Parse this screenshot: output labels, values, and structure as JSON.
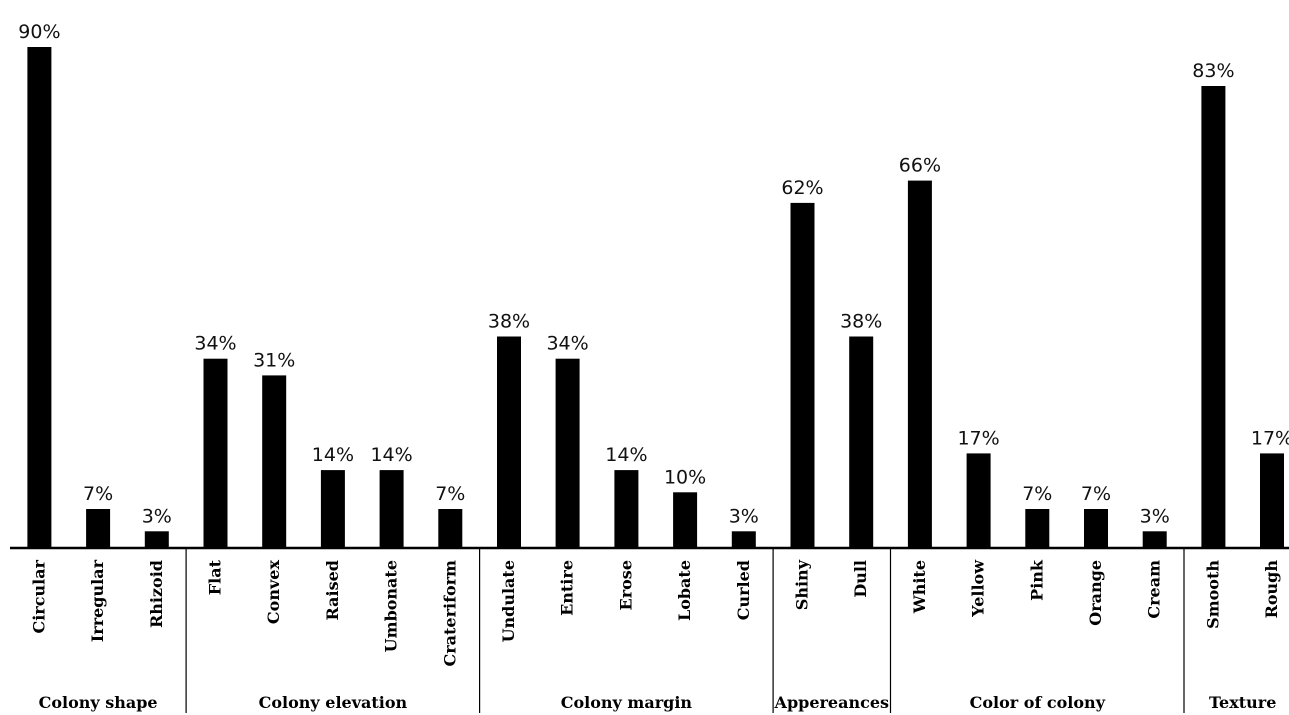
{
  "chart_data": {
    "type": "bar",
    "title": "",
    "xlabel": "",
    "ylabel": "",
    "ylim": [
      0,
      90
    ],
    "grid": false,
    "legend": "none",
    "bar_color": "#000000",
    "value_suffix": "%",
    "groups": [
      {
        "name": "Colony shape",
        "categories": [
          "Circular",
          "Irregular",
          "Rhizoid"
        ],
        "values": [
          90,
          7,
          3
        ]
      },
      {
        "name": "Colony elevation",
        "categories": [
          "Flat",
          "Convex",
          "Raised",
          "Umbonate",
          "Crateriform"
        ],
        "values": [
          34,
          31,
          14,
          14,
          7
        ]
      },
      {
        "name": "Colony margin",
        "categories": [
          "Undulate",
          "Entire",
          "Erose",
          "Lobate",
          "Curled"
        ],
        "values": [
          38,
          34,
          14,
          10,
          3
        ]
      },
      {
        "name": "Appereances",
        "categories": [
          "Shiny",
          "Dull"
        ],
        "values": [
          62,
          38
        ]
      },
      {
        "name": "Color of colony",
        "categories": [
          "White",
          "Yellow",
          "Pink",
          "Orange",
          "Cream"
        ],
        "values": [
          66,
          17,
          7,
          7,
          3
        ]
      },
      {
        "name": "Texture",
        "categories": [
          "Smooth",
          "Rough"
        ],
        "values": [
          83,
          17
        ]
      }
    ]
  }
}
